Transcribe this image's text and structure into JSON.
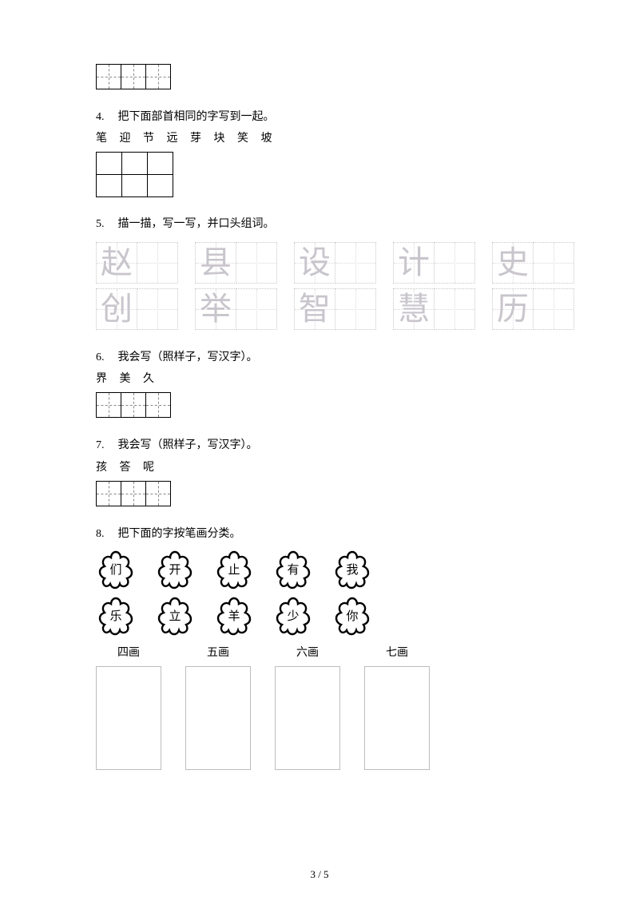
{
  "colors": {
    "text": "#000000",
    "bg": "#ffffff",
    "trace_char": "#c9c5cc",
    "trace_border": "#c7c7c7",
    "dashed_guide": "#888888",
    "cat_box_border": "#bdbdbd"
  },
  "typography": {
    "body_fontsize": 14,
    "trace_char_fontsize": 40,
    "flower_char_fontsize": 15,
    "font_family": "SimSun"
  },
  "top_grid": {
    "cells": 3
  },
  "q4": {
    "num": "4.",
    "prompt": "把下面部首相同的字写到一起。",
    "chars": "笔 迎 节 远 芽 块 笑 坡",
    "grid_cols": 3,
    "grid_rows": 2
  },
  "q5": {
    "num": "5.",
    "prompt": "描一描，写一写，并口头组词。",
    "rows": [
      [
        "赵",
        "县",
        "设",
        "计",
        "史"
      ],
      [
        "创",
        "举",
        "智",
        "慧",
        "历"
      ]
    ],
    "box_cells": 2
  },
  "q6": {
    "num": "6.",
    "prompt": "我会写（照样子，写汉字）。",
    "chars": "界 美 久",
    "grid_cells": 3
  },
  "q7": {
    "num": "7.",
    "prompt": "我会写（照样子，写汉字）。",
    "chars": "孩 答 呢",
    "grid_cells": 3
  },
  "q8": {
    "num": "8.",
    "prompt": "把下面的字按笔画分类。",
    "flower_rows": [
      [
        "们",
        "开",
        "止",
        "有",
        "我"
      ],
      [
        "乐",
        "立",
        "羊",
        "少",
        "你"
      ]
    ],
    "categories": [
      "四画",
      "五画",
      "六画",
      "七画"
    ]
  },
  "page": {
    "label": "3 / 5"
  }
}
